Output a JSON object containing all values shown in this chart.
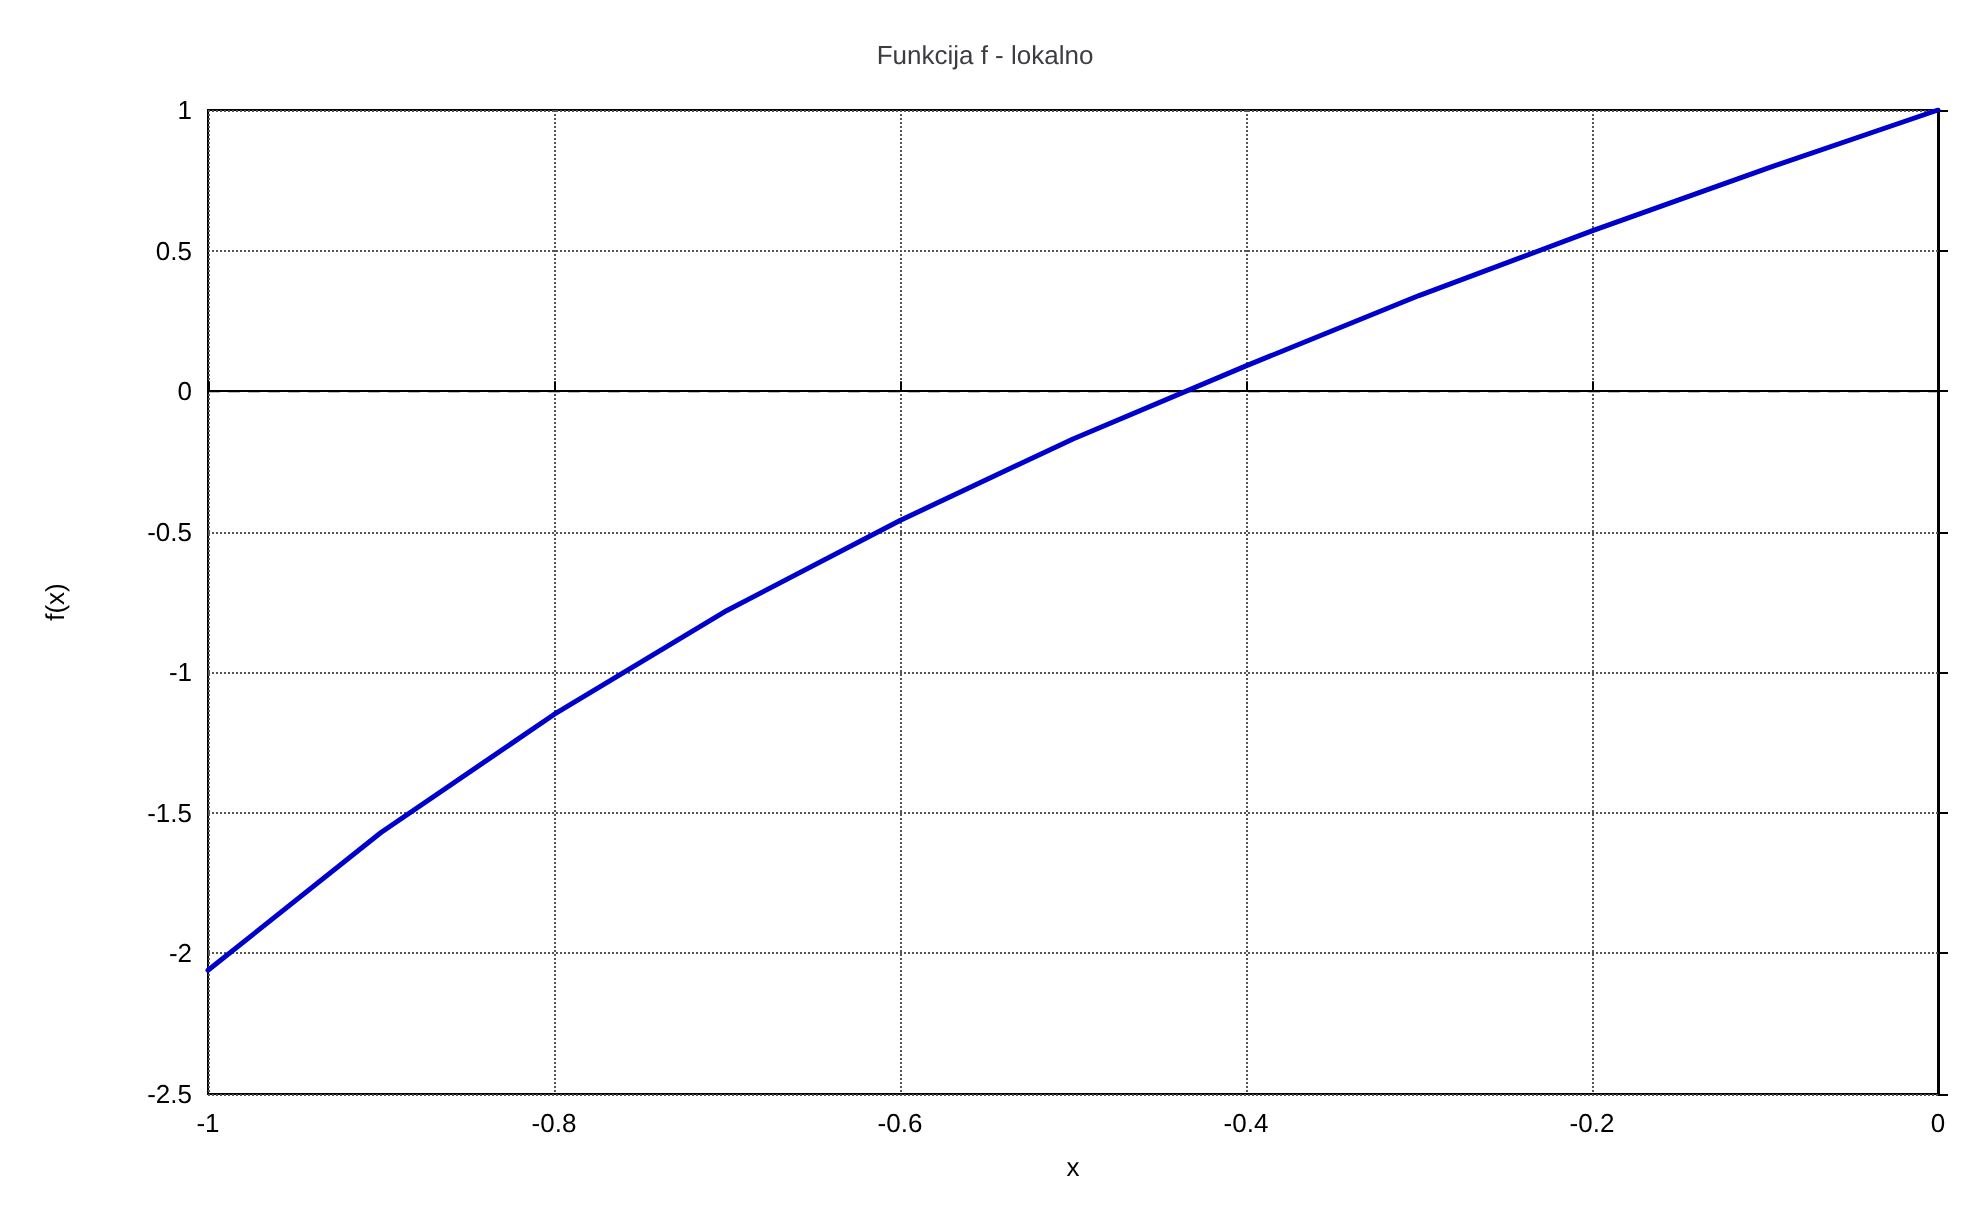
{
  "chart_data": {
    "type": "line",
    "title": "Funkcija f - lokalno",
    "xlabel": "x",
    "ylabel": "f(x)",
    "x": [
      -1,
      -0.9,
      -0.8,
      -0.7,
      -0.6,
      -0.5,
      -0.4,
      -0.3,
      -0.2,
      -0.1,
      0
    ],
    "series": [
      {
        "color": "#0000cc",
        "values": [
          -2.06,
          -1.57,
          -1.15,
          -0.78,
          -0.46,
          -0.17,
          0.09,
          0.34,
          0.57,
          0.79,
          1
        ]
      }
    ],
    "xlim": [
      -1,
      0
    ],
    "xticks": [
      -1,
      -0.8,
      -0.6,
      -0.4,
      -0.2,
      0
    ],
    "ylim": [
      -2.5,
      1
    ],
    "yticks": [
      -2.5,
      -2,
      -1.5,
      -1,
      -0.5,
      0,
      0.5,
      1
    ],
    "ref_lines": [
      {
        "axis": "y",
        "value": 0,
        "color": "#000000",
        "line_style": "dashed"
      }
    ],
    "grid": true,
    "marker": "none",
    "line_style": "solid"
  }
}
